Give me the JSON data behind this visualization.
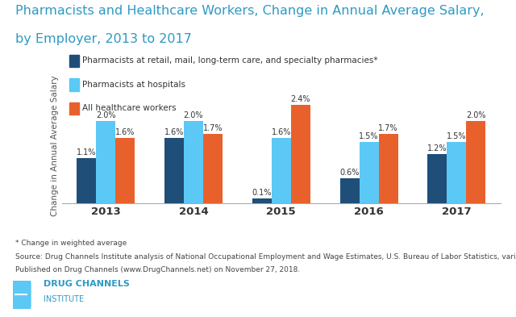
{
  "title_line1": "Pharmacists and Healthcare Workers, Change in Annual Average Salary,",
  "title_line2": "by Employer, 2013 to 2017",
  "title_color": "#2E9AC4",
  "years": [
    "2013",
    "2014",
    "2015",
    "2016",
    "2017"
  ],
  "series": {
    "retail": {
      "label": "Pharmacists at retail, mail, long-term care, and specialty pharmacies*",
      "color": "#1F4E79",
      "values": [
        1.1,
        1.6,
        0.1,
        0.6,
        1.2
      ]
    },
    "hospital": {
      "label": "Pharmacists at hospitals",
      "color": "#5BC8F5",
      "values": [
        2.0,
        2.0,
        1.6,
        1.5,
        1.5
      ]
    },
    "healthcare": {
      "label": "All healthcare workers",
      "color": "#E8612C",
      "values": [
        1.6,
        1.7,
        2.4,
        1.7,
        2.0
      ]
    }
  },
  "ylabel": "Change in Annual Average Salary",
  "ylim": [
    0,
    2.8
  ],
  "bar_width": 0.22,
  "background_color": "#FFFFFF",
  "footnote1": "* Change in weighted average",
  "footnote2": "Source: Drug Channels Institute analysis of National Occupational Employment and Wage Estimates, U.S. Bureau of Labor Statistics, various years",
  "footnote3": "Published on Drug Channels (www.DrugChannels.net) on November 27, 2018.",
  "label_fontsize": 7.0,
  "legend_fontsize": 7.5,
  "title_fontsize": 11.5
}
